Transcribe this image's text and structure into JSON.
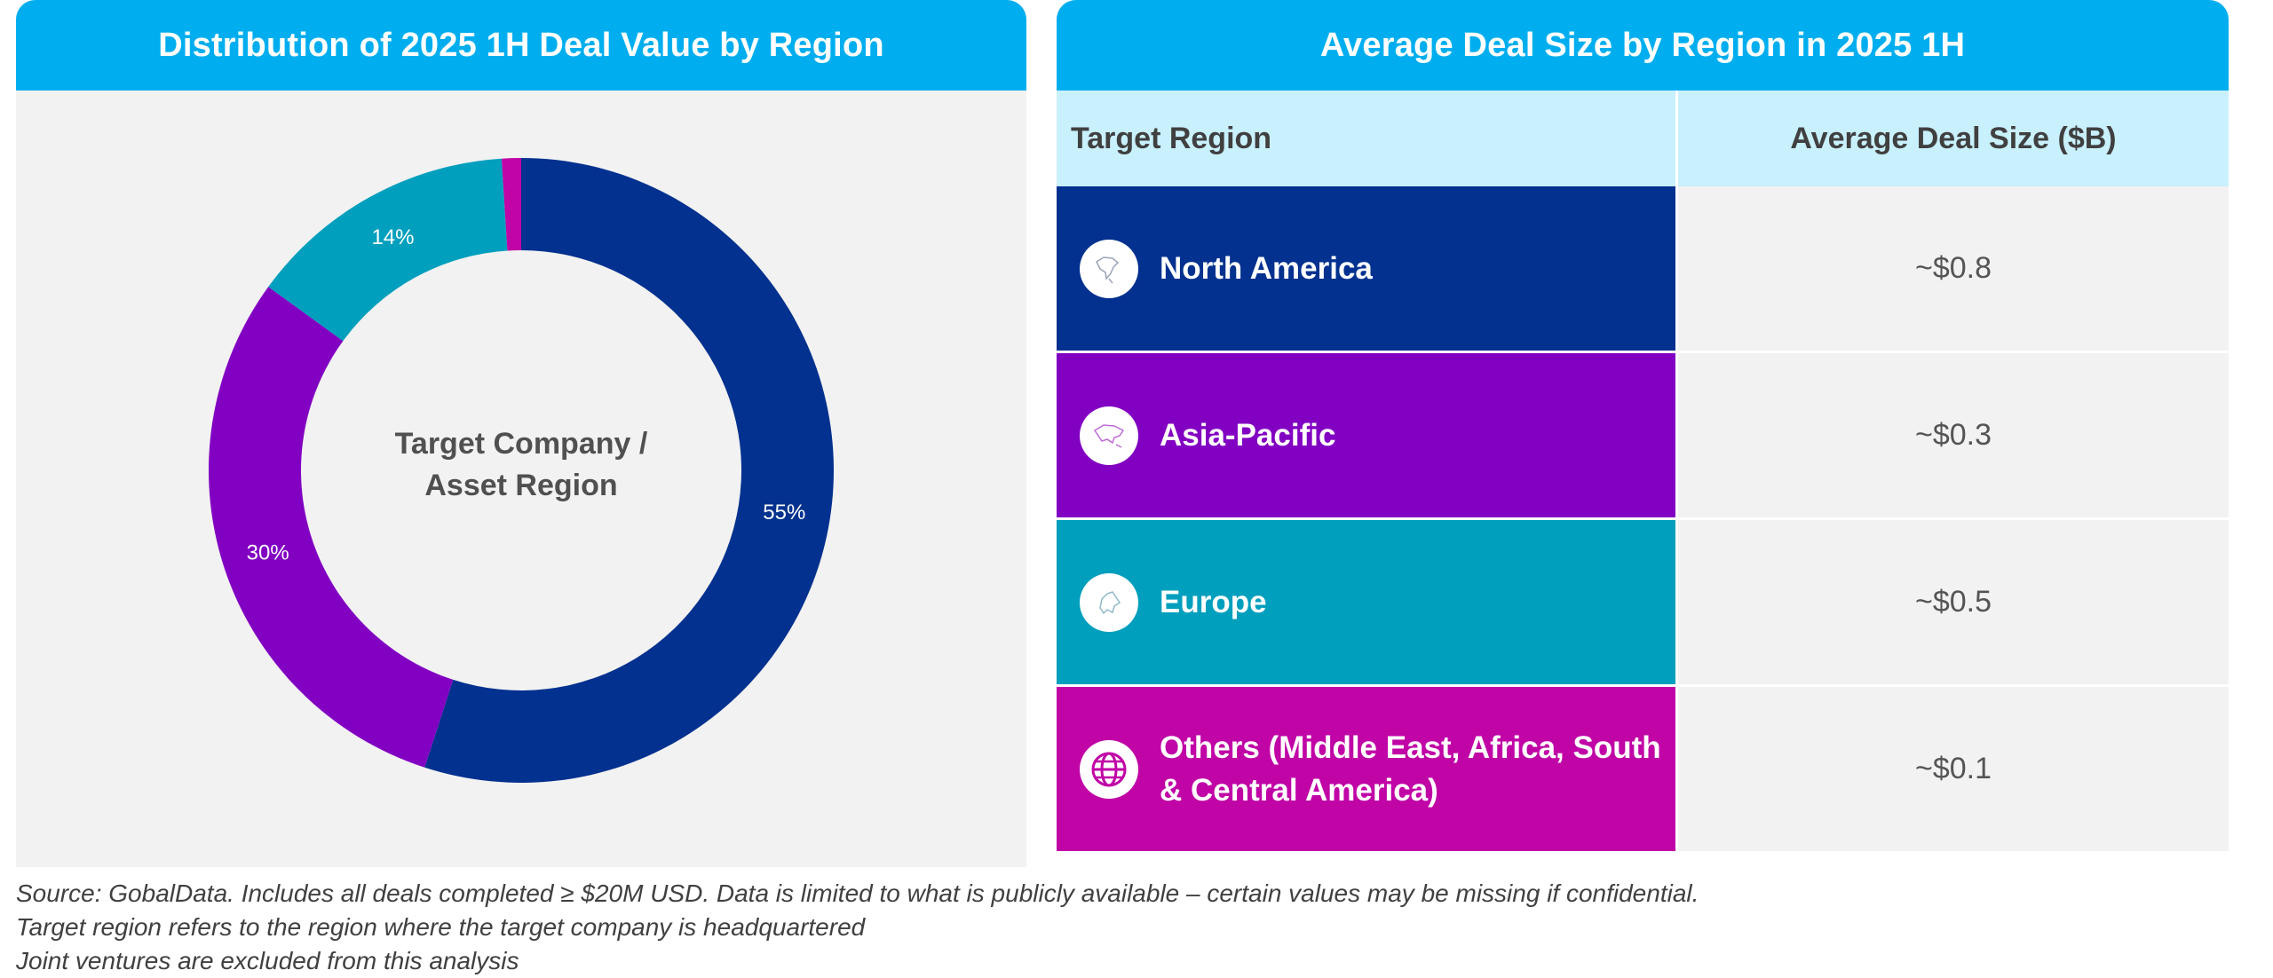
{
  "colors": {
    "header": "#00AEEF",
    "panel_bg": "#F2F2F2",
    "table_header_bg": "#C9F0FD",
    "north_america": "#03318F",
    "asia_pacific": "#8200C2",
    "europe": "#009FBD",
    "others": "#C004A6"
  },
  "left_panel": {
    "title": "Distribution of 2025 1H Deal Value by Region"
  },
  "right_panel": {
    "title": "Average Deal Size by Region in 2025 1H",
    "col_region": "Target Region",
    "col_value": "Average Deal Size ($B)",
    "rows": [
      {
        "region": "North America",
        "value": "~$0.8",
        "icon": "north-america-map-icon",
        "color": "#03318F"
      },
      {
        "region": "Asia-Pacific",
        "value": "~$0.3",
        "icon": "asia-map-icon",
        "color": "#8200C2"
      },
      {
        "region": "Europe",
        "value": "~$0.5",
        "icon": "europe-map-icon",
        "color": "#009FBD"
      },
      {
        "region": "Others (Middle East, Africa, South & Central America)",
        "value": "~$0.1",
        "icon": "globe-icon",
        "color": "#C004A6"
      }
    ]
  },
  "chart_data": {
    "type": "pie",
    "donut": true,
    "center_label_line1": "Target Company /",
    "center_label_line2": "Asset Region",
    "slices": [
      {
        "name": "North America",
        "value": 55,
        "label": "55%",
        "color": "#03318F"
      },
      {
        "name": "Asia-Pacific",
        "value": 30,
        "label": "30%",
        "color": "#8200C2"
      },
      {
        "name": "Europe",
        "value": 14,
        "label": "14%",
        "color": "#009FBD"
      },
      {
        "name": "Others (Middle East, Africa, South & Central America)",
        "value": 1,
        "label": "",
        "color": "#C004A6"
      }
    ]
  },
  "footnotes": {
    "line1": "Source: GobalData. Includes all deals completed ≥ $20M USD. Data is limited to what is publicly available – certain values may be missing if confidential.",
    "line2": "Target region refers to the region where the target company is headquartered",
    "line3": "Joint ventures are excluded from this analysis"
  }
}
